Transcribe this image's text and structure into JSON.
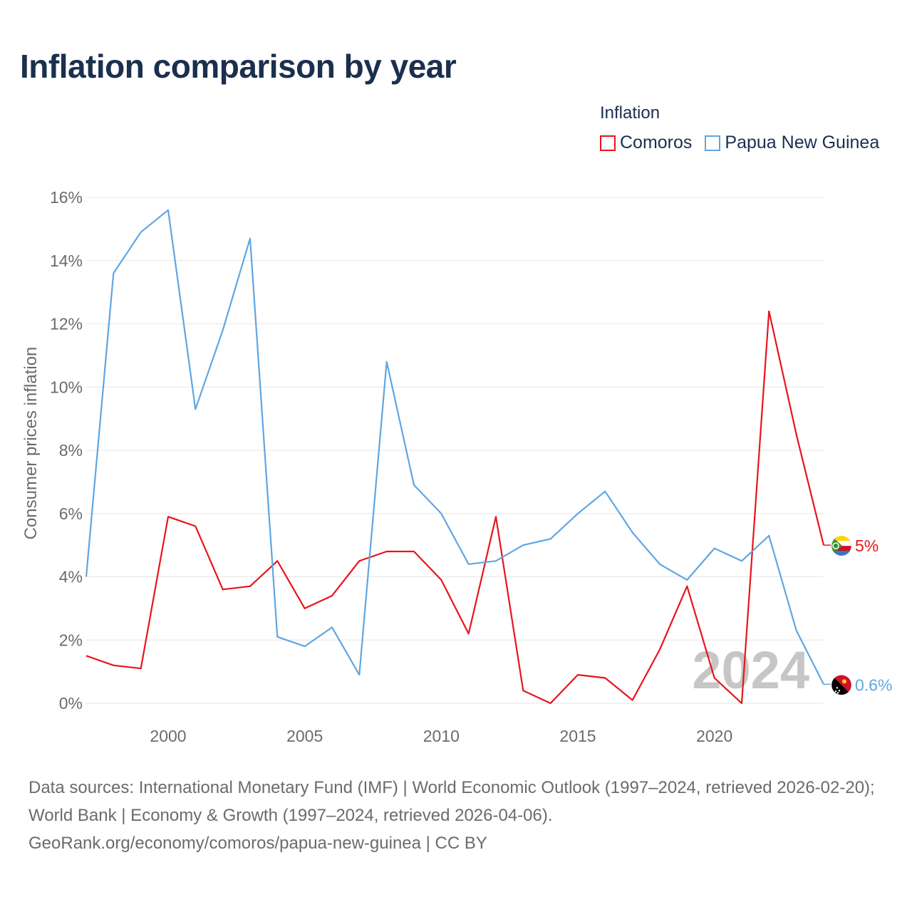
{
  "title": "Inflation comparison by year",
  "legend": {
    "title": "Inflation",
    "items": [
      {
        "label": "Comoros",
        "color": "#e8141c"
      },
      {
        "label": "Papua New Guinea",
        "color": "#5fa6e3"
      }
    ]
  },
  "chart_data": {
    "type": "line",
    "title": "Inflation comparison by year",
    "xlabel": "",
    "ylabel": "Consumer prices inflation",
    "xlim": [
      1997,
      2024
    ],
    "ylim": [
      0,
      16
    ],
    "x_ticks": [
      2000,
      2005,
      2010,
      2015,
      2020
    ],
    "x_tick_labels": [
      "2000",
      "2005",
      "2010",
      "2015",
      "2020"
    ],
    "y_ticks": [
      0,
      2,
      4,
      6,
      8,
      10,
      12,
      14,
      16
    ],
    "y_tick_labels": [
      "0%",
      "2%",
      "4%",
      "6%",
      "8%",
      "10%",
      "12%",
      "14%",
      "16%"
    ],
    "grid": true,
    "watermark_year": "2024",
    "x": [
      1997,
      1998,
      1999,
      2000,
      2001,
      2002,
      2003,
      2004,
      2005,
      2006,
      2007,
      2008,
      2009,
      2010,
      2011,
      2012,
      2013,
      2014,
      2015,
      2016,
      2017,
      2018,
      2019,
      2020,
      2021,
      2022,
      2023,
      2024
    ],
    "series": [
      {
        "name": "Comoros",
        "color": "#e8141c",
        "values": [
          1.5,
          1.2,
          1.1,
          5.9,
          5.6,
          3.6,
          3.7,
          4.5,
          3.0,
          3.4,
          4.5,
          4.8,
          4.8,
          3.9,
          2.2,
          5.9,
          0.4,
          0.0,
          0.9,
          0.8,
          0.1,
          1.7,
          3.7,
          0.8,
          0.0,
          12.4,
          8.5,
          5.0
        ],
        "end_label": "5%"
      },
      {
        "name": "Papua New Guinea",
        "color": "#5fa6e3",
        "values": [
          4.0,
          13.6,
          14.9,
          15.6,
          9.3,
          11.8,
          14.7,
          2.1,
          1.8,
          2.4,
          0.9,
          10.8,
          6.9,
          6.0,
          4.4,
          4.5,
          5.0,
          5.2,
          6.0,
          6.7,
          5.4,
          4.4,
          3.9,
          4.9,
          4.5,
          5.3,
          2.3,
          0.6
        ],
        "end_label": "0.6%"
      }
    ]
  },
  "footer": {
    "line1": "Data sources: International Monetary Fund (IMF) | World Economic Outlook (1997–2024, retrieved 2026-02-20); World Bank | Economy & Growth (1997–2024, retrieved 2026-04-06).",
    "line2": "GeoRank.org/economy/comoros/papua-new-guinea | CC BY"
  }
}
